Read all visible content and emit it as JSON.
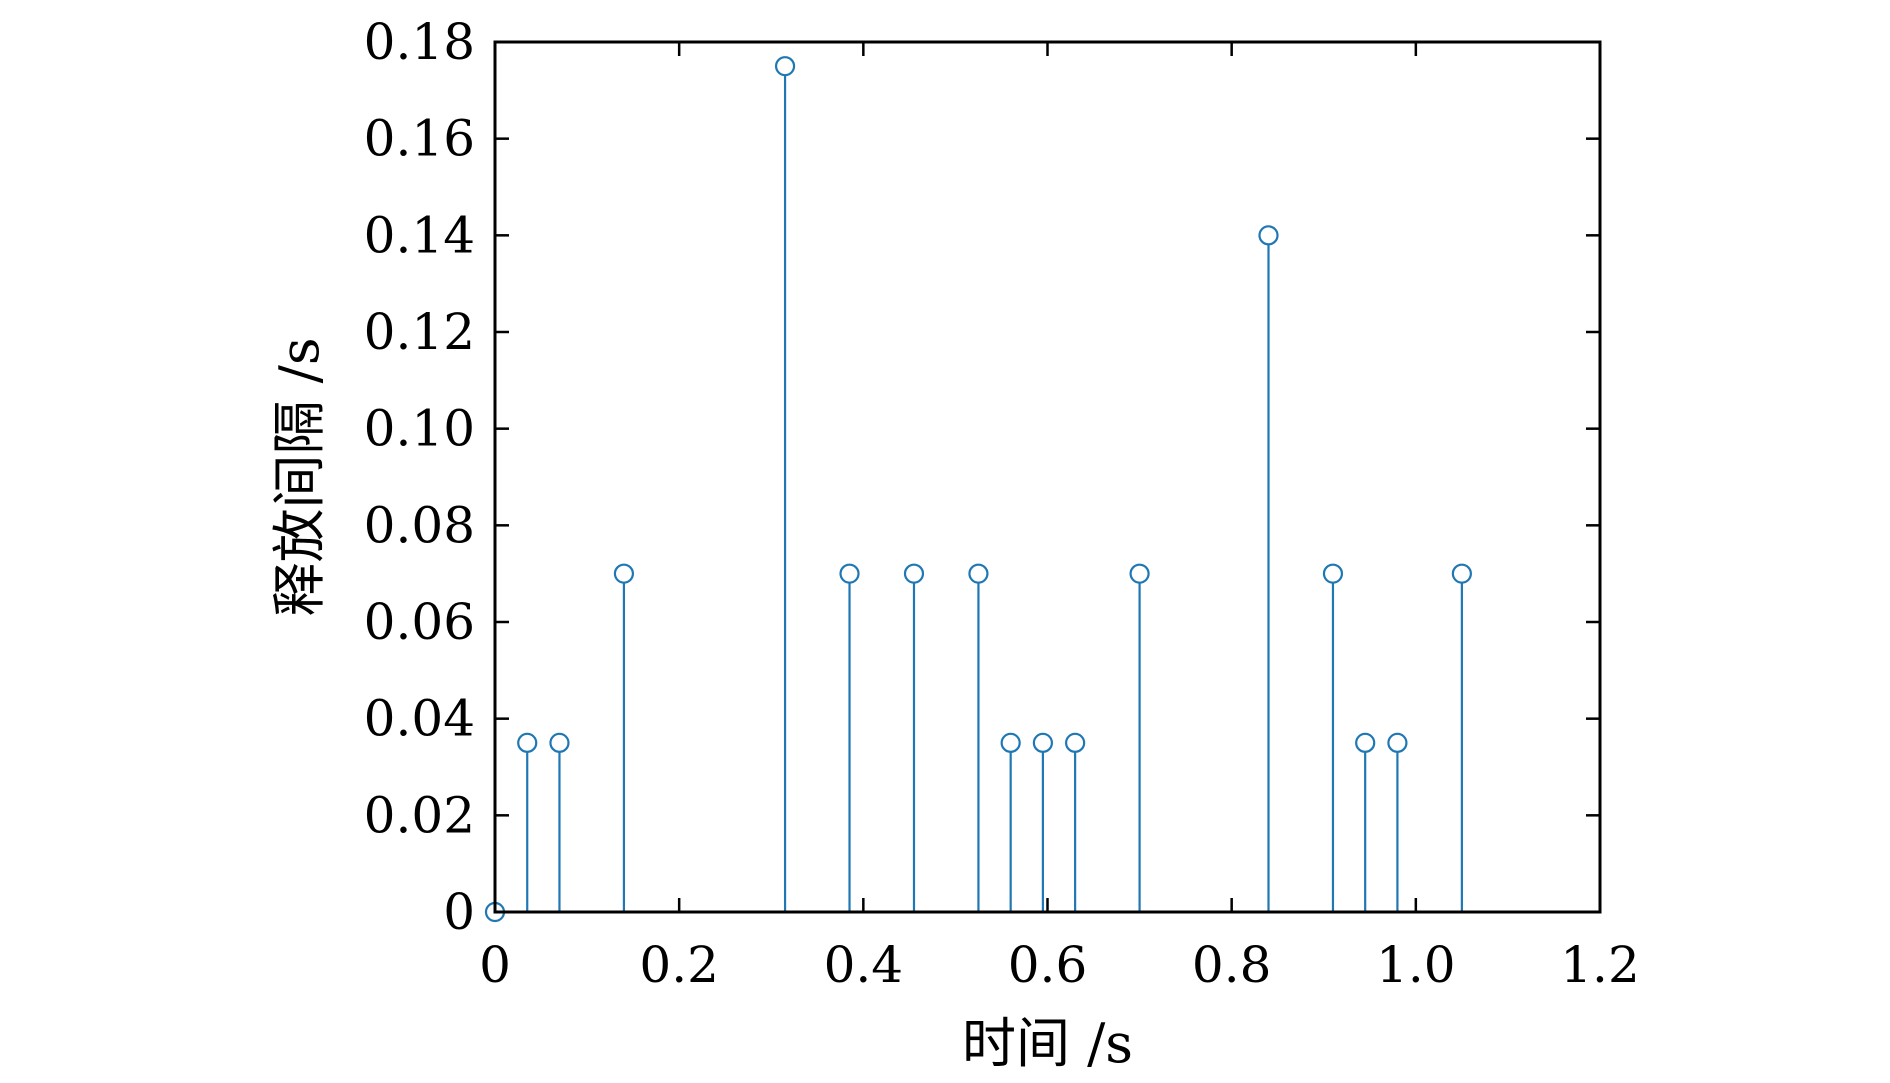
{
  "chart_data": {
    "type": "stem",
    "xlabel": "时间 /s",
    "ylabel": "释放间隔 /s",
    "xlim": [
      0,
      1.2
    ],
    "ylim": [
      0,
      0.18
    ],
    "xticks": [
      "0",
      "0.2",
      "0.4",
      "0.6",
      "0.8",
      "1.0",
      "1.2"
    ],
    "yticks": [
      "0",
      "0.02",
      "0.04",
      "0.06",
      "0.08",
      "0.10",
      "0.12",
      "0.14",
      "0.16",
      "0.18"
    ],
    "grid": false,
    "series_color": "#1f77b4",
    "points": [
      {
        "x": 0.0,
        "y": 0.0
      },
      {
        "x": 0.035,
        "y": 0.035
      },
      {
        "x": 0.07,
        "y": 0.035
      },
      {
        "x": 0.14,
        "y": 0.07
      },
      {
        "x": 0.315,
        "y": 0.175
      },
      {
        "x": 0.385,
        "y": 0.07
      },
      {
        "x": 0.455,
        "y": 0.07
      },
      {
        "x": 0.525,
        "y": 0.07
      },
      {
        "x": 0.56,
        "y": 0.035
      },
      {
        "x": 0.595,
        "y": 0.035
      },
      {
        "x": 0.63,
        "y": 0.035
      },
      {
        "x": 0.7,
        "y": 0.07
      },
      {
        "x": 0.84,
        "y": 0.14
      },
      {
        "x": 0.91,
        "y": 0.07
      },
      {
        "x": 0.945,
        "y": 0.035
      },
      {
        "x": 0.98,
        "y": 0.035
      },
      {
        "x": 1.05,
        "y": 0.07
      }
    ]
  }
}
